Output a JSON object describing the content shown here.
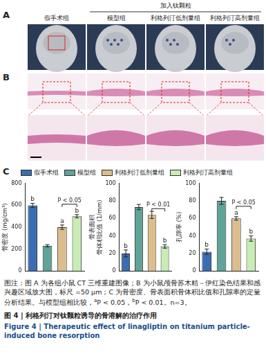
{
  "panel_labels": [
    "A",
    "B",
    "C"
  ],
  "group_header": "加入钛颗粒",
  "groups": [
    "假手术组",
    "模型组",
    "利格列汀低剂量组",
    "利格列汀高剂量组"
  ],
  "colors": [
    "#3a6db4",
    "#5fa496",
    "#dcbd8c",
    "#c8ecb4"
  ],
  "chart_data": [
    {
      "type": "bar",
      "y_label": "骨密度 (mg/cm³)",
      "categories": [
        "假手术组",
        "模型组",
        "利格列汀低剂量组",
        "利格列汀高剂量组"
      ],
      "values": [
        600,
        230,
        400,
        500
      ],
      "errors": [
        18,
        10,
        20,
        15
      ],
      "colors": [
        "#3a6db4",
        "#5fa496",
        "#dcbd8c",
        "#c8ecb4"
      ],
      "ylim": [
        0,
        800
      ],
      "yticks": [
        0,
        200,
        400,
        600,
        800
      ],
      "significance": [
        "b",
        null,
        "a",
        "b"
      ],
      "comparison": {
        "between": [
          "利格列汀低剂量组",
          "利格列汀高剂量组"
        ],
        "label": "P < 0.05"
      },
      "tick_labels": "y",
      "grid": false
    },
    {
      "type": "bar",
      "y_label": [
        "骨表面积",
        "骨体积比值 (1/mm)"
      ],
      "categories": [
        "假手术组",
        "模型组",
        "利格列汀低剂量组",
        "利格列汀高剂量组"
      ],
      "values": [
        20,
        73,
        64,
        28
      ],
      "errors": [
        4,
        3,
        4,
        2
      ],
      "colors": [
        "#3a6db4",
        "#5fa496",
        "#dcbd8c",
        "#c8ecb4"
      ],
      "ylim": [
        0,
        100
      ],
      "yticks": [
        0,
        20,
        40,
        60,
        80,
        100
      ],
      "significance": [
        "b",
        null,
        null,
        "b"
      ],
      "comparison": {
        "between": [
          "利格列汀低剂量组",
          "利格列汀高剂量组"
        ],
        "label": "P < 0.01"
      },
      "tick_labels": "y",
      "grid": false
    },
    {
      "type": "bar",
      "y_label": "孔隙率 (%)",
      "categories": [
        "假手术组",
        "模型组",
        "利格列汀低剂量组",
        "利格列汀高剂量组"
      ],
      "values": [
        22,
        80,
        60,
        37
      ],
      "errors": [
        3,
        4,
        2,
        3
      ],
      "colors": [
        "#3a6db4",
        "#5fa496",
        "#dcbd8c",
        "#c8ecb4"
      ],
      "ylim": [
        0,
        100
      ],
      "yticks": [
        0,
        20,
        40,
        60,
        80,
        100
      ],
      "significance": [
        "b",
        null,
        "a",
        "b"
      ],
      "comparison": {
        "between": [
          "利格列汀低剂量组",
          "利格列汀高剂量组"
        ],
        "label": "P < 0.05"
      },
      "tick_labels": "y",
      "grid": false
    }
  ],
  "caption": [
    "图注：图 A 为各组小鼠 CT 三维重建图像；B 为小鼠颅骨苏木精－伊红染色结果和感兴趣区域放大图，标尺 =50 μm；C 为骨密度、骨表面积骨体积比值和孔隙率的定量分析结果。与模型组相比较，",
    {
      "sup": "a"
    },
    "P < 0.05，",
    {
      "sup": "b"
    },
    "P < 0.01。",
    "n=3。"
  ],
  "figure_title_cn": "图 4 | 利格列汀对钛颗粒诱导的骨溶解的治疗作用",
  "figure_title_en": "Figure 4 | Therapeutic effect of linagliptin on titanium particle-induced bone resorption"
}
